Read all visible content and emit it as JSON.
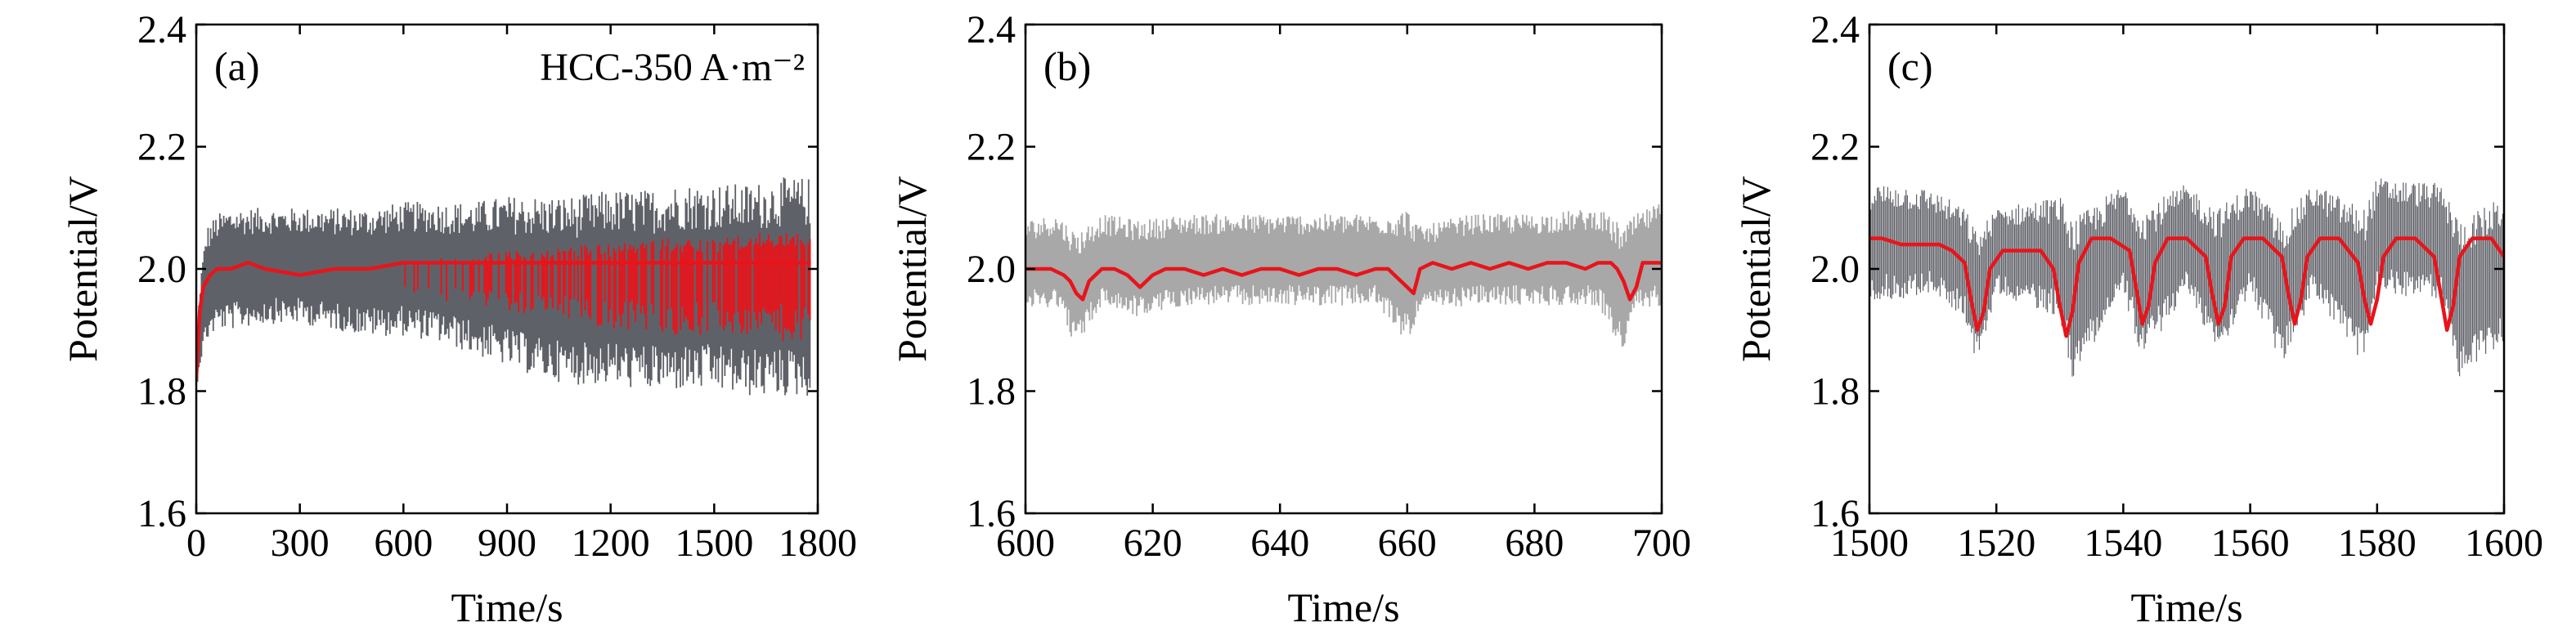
{
  "colors": {
    "raw_dark": "#5f6168",
    "raw_light": "#a8a8a8",
    "smoothed": "#e8141b",
    "axis": "#000000"
  },
  "chart_data": [
    {
      "type": "line",
      "panel_label": "(a)",
      "annotation": "HCC-350 A·m⁻²",
      "xlabel": "Time/s",
      "ylabel": "Potential/V",
      "xlim": [
        0,
        1800
      ],
      "ylim": [
        1.6,
        2.4
      ],
      "x_ticks": [
        "0",
        "300",
        "600",
        "900",
        "1200",
        "1500",
        "1800"
      ],
      "y_ticks": [
        "1.6",
        "1.8",
        "2.0",
        "2.2",
        "2.4"
      ],
      "raw_color": "#5f6168",
      "raw_envelope": {
        "x": [
          0,
          10,
          30,
          60,
          100,
          200,
          300,
          400,
          500,
          600,
          700,
          800,
          900,
          1000,
          1100,
          1200,
          1300,
          1400,
          1500,
          1600,
          1700,
          1780
        ],
        "upper": [
          1.85,
          1.98,
          2.07,
          2.09,
          2.1,
          2.1,
          2.1,
          2.1,
          2.1,
          2.11,
          2.11,
          2.11,
          2.12,
          2.12,
          2.12,
          2.13,
          2.13,
          2.14,
          2.14,
          2.14,
          2.15,
          2.15
        ],
        "lower": [
          1.8,
          1.84,
          1.88,
          1.9,
          1.9,
          1.91,
          1.91,
          1.9,
          1.89,
          1.89,
          1.88,
          1.86,
          1.84,
          1.82,
          1.81,
          1.81,
          1.8,
          1.8,
          1.8,
          1.79,
          1.79,
          1.79
        ]
      },
      "series": [
        {
          "x": [
            0,
            10,
            20,
            40,
            60,
            100,
            150,
            200,
            300,
            400,
            500,
            600,
            700,
            800,
            900,
            1000,
            1100,
            1200,
            1300,
            1400,
            1500,
            1600,
            1700,
            1780
          ],
          "values": [
            1.82,
            1.93,
            1.97,
            1.99,
            2.0,
            2.0,
            2.01,
            2.0,
            1.99,
            2.0,
            2.0,
            2.01,
            2.01,
            2.01,
            2.01,
            2.01,
            2.01,
            2.01,
            2.01,
            2.01,
            2.01,
            2.01,
            2.01,
            2.01
          ]
        }
      ],
      "smoothed_band": {
        "x": [
          600,
          700,
          800,
          900,
          1000,
          1100,
          1200,
          1300,
          1400,
          1500,
          1600,
          1700,
          1780
        ],
        "upper": [
          2.01,
          2.02,
          2.02,
          2.03,
          2.03,
          2.04,
          2.04,
          2.05,
          2.05,
          2.05,
          2.06,
          2.06,
          2.06
        ],
        "lower": [
          1.96,
          1.95,
          1.94,
          1.93,
          1.92,
          1.91,
          1.9,
          1.9,
          1.89,
          1.89,
          1.89,
          1.88,
          1.88
        ]
      }
    },
    {
      "type": "line",
      "panel_label": "(b)",
      "xlabel": "Time/s",
      "ylabel": "Potential/V",
      "xlim": [
        600,
        700
      ],
      "ylim": [
        1.6,
        2.4
      ],
      "x_ticks": [
        "600",
        "620",
        "640",
        "660",
        "680",
        "700"
      ],
      "y_ticks": [
        "1.6",
        "1.8",
        "2.0",
        "2.2",
        "2.4"
      ],
      "raw_color": "#a8a8a8",
      "raw_envelope": {
        "x": [
          600,
          605,
          608,
          612,
          618,
          625,
          635,
          645,
          655,
          660,
          662,
          670,
          680,
          690,
          694,
          696,
          700
        ],
        "upper": [
          2.08,
          2.09,
          2.06,
          2.09,
          2.08,
          2.09,
          2.09,
          2.09,
          2.09,
          2.1,
          2.07,
          2.09,
          2.09,
          2.1,
          2.07,
          2.09,
          2.11
        ],
        "lower": [
          1.93,
          1.94,
          1.87,
          1.94,
          1.92,
          1.94,
          1.94,
          1.94,
          1.94,
          1.88,
          1.93,
          1.94,
          1.94,
          1.94,
          1.86,
          1.93,
          1.94
        ]
      },
      "series": [
        {
          "x": [
            600,
            602,
            604,
            606,
            607,
            608,
            609,
            610,
            612,
            614,
            616,
            617,
            618,
            620,
            622,
            625,
            628,
            631,
            634,
            637,
            640,
            643,
            646,
            649,
            652,
            655,
            657,
            658,
            659,
            660,
            661,
            662,
            664,
            667,
            670,
            673,
            676,
            679,
            682,
            685,
            688,
            690,
            692,
            693,
            694,
            695,
            696,
            697,
            699,
            700
          ],
          "values": [
            2.0,
            2.0,
            2.0,
            1.99,
            1.98,
            1.96,
            1.95,
            1.98,
            2.0,
            2.0,
            1.99,
            1.98,
            1.97,
            1.99,
            2.0,
            2.0,
            1.99,
            2.0,
            1.99,
            2.0,
            2.0,
            1.99,
            2.0,
            2.0,
            1.99,
            2.0,
            2.0,
            1.99,
            1.98,
            1.97,
            1.96,
            2.0,
            2.01,
            2.0,
            2.01,
            2.0,
            2.01,
            2.0,
            2.01,
            2.01,
            2.0,
            2.01,
            2.01,
            2.0,
            1.98,
            1.95,
            1.97,
            2.01,
            2.01,
            2.01
          ]
        }
      ]
    },
    {
      "type": "line",
      "panel_label": "(c)",
      "xlabel": "Time/s",
      "ylabel": "Potential/V",
      "xlim": [
        1500,
        1600
      ],
      "ylim": [
        1.6,
        2.4
      ],
      "x_ticks": [
        "1500",
        "1520",
        "1540",
        "1560",
        "1580",
        "1600"
      ],
      "y_ticks": [
        "1.6",
        "1.8",
        "2.0",
        "2.2",
        "2.4"
      ],
      "raw_color": "#5f6168",
      "raw_envelope": {
        "x": [
          1500,
          1505,
          1510,
          1515,
          1517,
          1520,
          1530,
          1532,
          1540,
          1543,
          1550,
          1555,
          1560,
          1565,
          1570,
          1578,
          1580,
          1590,
          1593,
          1600
        ],
        "upper": [
          2.14,
          2.14,
          2.13,
          2.1,
          2.06,
          2.1,
          2.12,
          2.08,
          2.14,
          2.1,
          2.14,
          2.1,
          2.14,
          2.08,
          2.14,
          2.1,
          2.15,
          2.14,
          2.08,
          2.12
        ],
        "lower": [
          1.95,
          1.95,
          1.96,
          1.92,
          1.84,
          1.96,
          1.92,
          1.82,
          1.96,
          1.85,
          1.96,
          1.86,
          1.96,
          1.84,
          1.96,
          1.84,
          1.96,
          1.95,
          1.82,
          1.88
        ]
      },
      "series": [
        {
          "x": [
            1500,
            1502,
            1505,
            1508,
            1511,
            1513,
            1515,
            1516,
            1517,
            1518,
            1519,
            1521,
            1524,
            1527,
            1529,
            1530,
            1531,
            1532,
            1533,
            1535,
            1538,
            1541,
            1542,
            1543,
            1544,
            1545,
            1547,
            1550,
            1553,
            1554,
            1555,
            1556,
            1557,
            1559,
            1562,
            1565,
            1566,
            1567,
            1568,
            1569,
            1571,
            1574,
            1577,
            1578,
            1579,
            1580,
            1581,
            1583,
            1586,
            1589,
            1590,
            1591,
            1592,
            1593,
            1595,
            1598,
            1600
          ],
          "values": [
            2.05,
            2.05,
            2.04,
            2.04,
            2.04,
            2.03,
            2.01,
            1.95,
            1.9,
            1.93,
            2.0,
            2.03,
            2.03,
            2.03,
            2.0,
            1.94,
            1.89,
            1.93,
            2.01,
            2.05,
            2.05,
            2.03,
            1.97,
            1.91,
            1.94,
            2.01,
            2.05,
            2.05,
            2.02,
            1.96,
            1.91,
            1.94,
            2.02,
            2.05,
            2.05,
            2.02,
            1.96,
            1.91,
            1.95,
            2.02,
            2.05,
            2.05,
            2.01,
            1.95,
            1.91,
            1.95,
            2.02,
            2.05,
            2.05,
            2.02,
            1.96,
            1.9,
            1.94,
            2.02,
            2.05,
            2.05,
            2.02
          ]
        }
      ]
    }
  ]
}
